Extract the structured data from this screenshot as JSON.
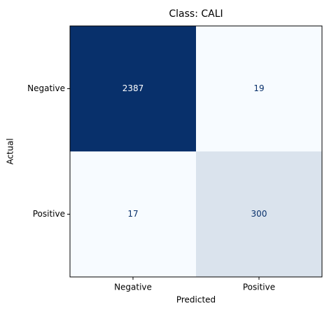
{
  "chart_data": {
    "type": "heatmap",
    "title": "Class: CALI",
    "x_label": "Predicted",
    "y_label": "Actual",
    "x_categories": [
      "Negative",
      "Positive"
    ],
    "y_categories": [
      "Negative",
      "Positive"
    ],
    "values": [
      [
        2387,
        19
      ],
      [
        17,
        300
      ]
    ],
    "color_low": "#f7fbff",
    "color_high": "#08306b"
  }
}
